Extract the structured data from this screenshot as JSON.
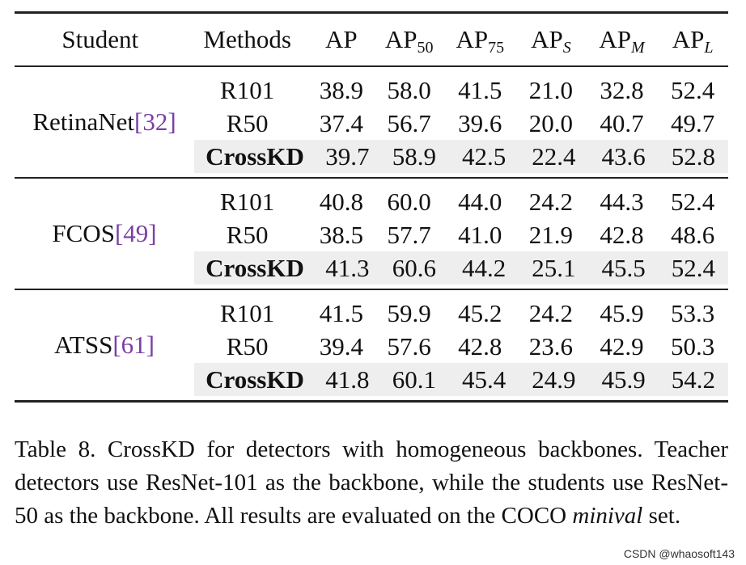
{
  "table": {
    "headers": {
      "student": "Student",
      "methods": "Methods",
      "ap": "AP",
      "ap50_base": "AP",
      "ap50_sub": "50",
      "ap75_base": "AP",
      "ap75_sub": "75",
      "aps_base": "AP",
      "aps_sub": "S",
      "apm_base": "AP",
      "apm_sub": "M",
      "apl_base": "AP",
      "apl_sub": "L"
    },
    "groups": [
      {
        "student": "RetinaNet ",
        "cite": "[32]",
        "rows": [
          {
            "method": "R101",
            "ap": "38.9",
            "ap50": "58.0",
            "ap75": "41.5",
            "aps": "21.0",
            "apm": "32.8",
            "apl": "52.4"
          },
          {
            "method": "R50",
            "ap": "37.4",
            "ap50": "56.7",
            "ap75": "39.6",
            "aps": "20.0",
            "apm": "40.7",
            "apl": "49.7"
          },
          {
            "method": "CrossKD",
            "ap": "39.7",
            "ap50": "58.9",
            "ap75": "42.5",
            "aps": "22.4",
            "apm": "43.6",
            "apl": "52.8"
          }
        ]
      },
      {
        "student": "FCOS ",
        "cite": "[49]",
        "rows": [
          {
            "method": "R101",
            "ap": "40.8",
            "ap50": "60.0",
            "ap75": "44.0",
            "aps": "24.2",
            "apm": "44.3",
            "apl": "52.4"
          },
          {
            "method": "R50",
            "ap": "38.5",
            "ap50": "57.7",
            "ap75": "41.0",
            "aps": "21.9",
            "apm": "42.8",
            "apl": "48.6"
          },
          {
            "method": "CrossKD",
            "ap": "41.3",
            "ap50": "60.6",
            "ap75": "44.2",
            "aps": "25.1",
            "apm": "45.5",
            "apl": "52.4"
          }
        ]
      },
      {
        "student": "ATSS ",
        "cite": "[61]",
        "rows": [
          {
            "method": "R101",
            "ap": "41.5",
            "ap50": "59.9",
            "ap75": "45.2",
            "aps": "24.2",
            "apm": "45.9",
            "apl": "53.3"
          },
          {
            "method": "R50",
            "ap": "39.4",
            "ap50": "57.6",
            "ap75": "42.8",
            "aps": "23.6",
            "apm": "42.9",
            "apl": "50.3"
          },
          {
            "method": "CrossKD",
            "ap": "41.8",
            "ap50": "60.1",
            "ap75": "45.4",
            "aps": "24.9",
            "apm": "45.9",
            "apl": "54.2"
          }
        ]
      }
    ]
  },
  "caption": {
    "part1": "Table 8. CrossKD for detectors with homogeneous backbones. Teacher detectors use ResNet-101 as the backbone, while the students use ResNet-50 as the backbone. All results are evaluated on the COCO ",
    "italic": "minival",
    "part2": " set."
  },
  "watermark": "CSDN @whaosoft143"
}
